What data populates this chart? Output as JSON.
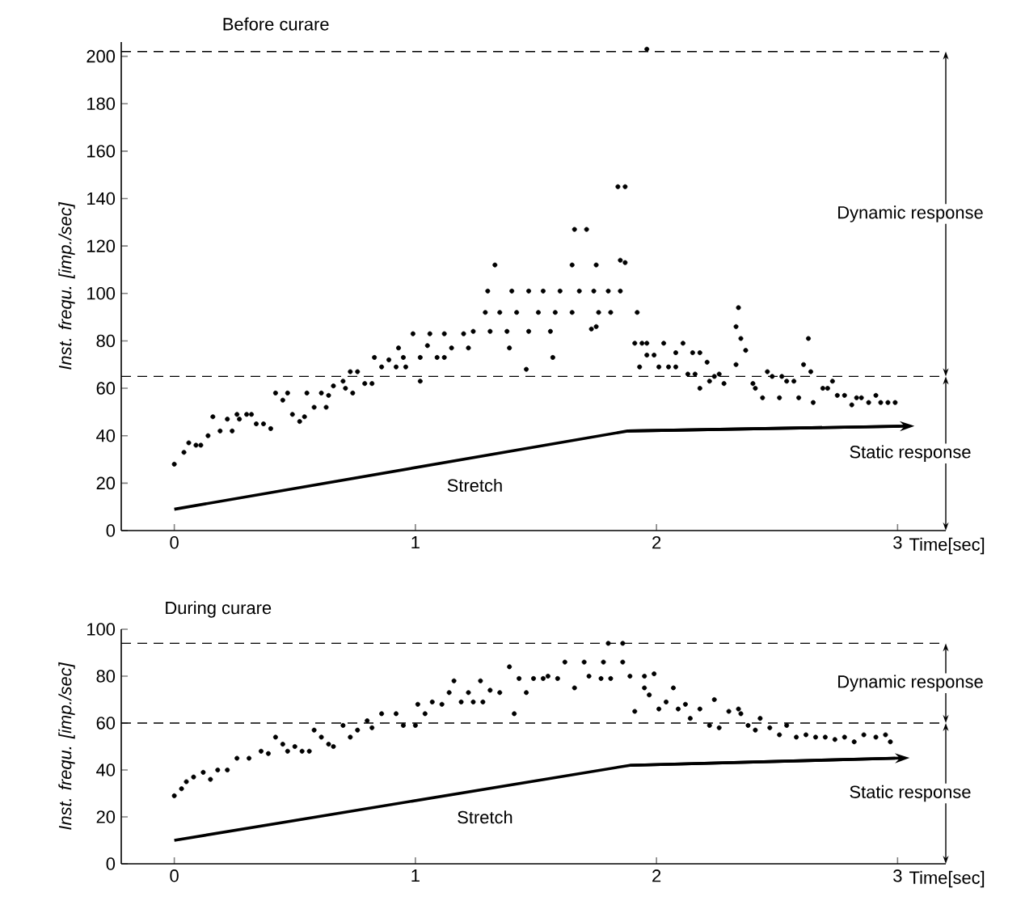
{
  "chart_data": [
    {
      "type": "scatter",
      "title": "Before curare",
      "xlabel": "Time[sec]",
      "ylabel": "Inst. frequ. [imp./sec]",
      "xlim": [
        -0.22,
        3.2
      ],
      "ylim": [
        0,
        206
      ],
      "xticks": [
        0,
        1,
        2,
        3
      ],
      "yticks": [
        0,
        20,
        40,
        60,
        80,
        100,
        120,
        140,
        160,
        180,
        200
      ],
      "marker": "circle",
      "series": [
        {
          "color": "#000000",
          "x": [
            0.0,
            0.04,
            0.06,
            0.09,
            0.11,
            0.14,
            0.16,
            0.19,
            0.22,
            0.24,
            0.26,
            0.27,
            0.3,
            0.32,
            0.34,
            0.37,
            0.4,
            0.42,
            0.45,
            0.47,
            0.49,
            0.52,
            0.54,
            0.55,
            0.58,
            0.61,
            0.63,
            0.64,
            0.66,
            0.7,
            0.71,
            0.74,
            0.73,
            0.76,
            0.79,
            0.82,
            0.83,
            0.86,
            0.89,
            0.92,
            0.93,
            0.95,
            0.96,
            0.99,
            1.02,
            1.02,
            1.05,
            1.06,
            1.09,
            1.12,
            1.12,
            1.15,
            1.2,
            1.22,
            1.24,
            1.29,
            1.3,
            1.33,
            1.31,
            1.35,
            1.38,
            1.39,
            1.4,
            1.42,
            1.46,
            1.47,
            1.47,
            1.51,
            1.53,
            1.56,
            1.57,
            1.58,
            1.6,
            1.65,
            1.66,
            1.65,
            1.68,
            1.71,
            1.75,
            1.74,
            1.8,
            1.85,
            1.76,
            1.81,
            1.73,
            1.75,
            1.84,
            1.87,
            1.85,
            1.87,
            1.92,
            1.96,
            1.91,
            1.94,
            1.96,
            1.99,
            2.03,
            1.93,
            1.96,
            2.01,
            2.05,
            2.08,
            2.08,
            2.11,
            2.13,
            2.15,
            2.18,
            2.16,
            2.21,
            2.18,
            2.22,
            2.24,
            2.26,
            2.28,
            2.33,
            2.34,
            2.33,
            2.35,
            2.37,
            2.4,
            2.41,
            2.44,
            2.46,
            2.48,
            2.51,
            2.52,
            2.54,
            2.57,
            2.59,
            2.61,
            2.63,
            2.64,
            2.65,
            2.69,
            2.71,
            2.73,
            2.75,
            2.78,
            2.81,
            2.83,
            2.85,
            2.88,
            2.91,
            2.93,
            2.96,
            2.99
          ],
          "values": [
            28,
            33,
            37,
            36,
            36,
            40,
            48,
            42,
            47,
            42,
            49,
            47,
            49,
            49,
            45,
            45,
            43,
            58,
            55,
            58,
            49,
            46,
            48,
            58,
            52,
            58,
            52,
            57,
            61,
            63,
            60,
            58,
            67,
            67,
            62,
            62,
            73,
            69,
            72,
            69,
            77,
            73,
            69,
            83,
            63,
            73,
            78,
            83,
            73,
            83,
            73,
            77,
            83,
            77,
            84,
            92,
            101,
            112,
            84,
            92,
            84,
            77,
            101,
            92,
            68,
            101,
            84,
            92,
            101,
            84,
            73,
            92,
            101,
            112,
            127,
            92,
            101,
            127,
            112,
            101,
            101,
            101,
            92,
            92,
            85,
            86,
            145,
            145,
            114,
            113,
            92,
            203,
            79,
            79,
            79,
            74,
            79,
            69,
            74,
            69,
            69,
            69,
            75,
            79,
            66,
            75,
            75,
            66,
            71,
            60,
            63,
            65,
            66,
            62,
            70,
            94,
            86,
            81,
            76,
            62,
            60,
            56,
            67,
            65,
            56,
            65,
            63,
            63,
            56,
            70,
            81,
            67,
            54,
            60,
            60,
            63,
            57,
            57,
            53,
            56,
            56,
            54,
            57,
            54,
            54,
            54
          ]
        },
        {
          "type": "line",
          "name": "Stretch",
          "color": "#000000",
          "marker": "none",
          "x": [
            0,
            1.88,
            3.01
          ],
          "values": [
            9,
            42,
            44
          ]
        }
      ],
      "ref_lines": [
        {
          "axis": "y",
          "value": 202,
          "line_style": "dashed"
        },
        {
          "axis": "y",
          "value": 65,
          "line_style": "dashed"
        }
      ],
      "annotations": [
        "Dynamic response",
        "Static response"
      ]
    },
    {
      "type": "scatter",
      "title": "During curare",
      "xlabel": "Time[sec]",
      "ylabel": "Inst. frequ. [imp./sec]",
      "xlim": [
        -0.22,
        3.2
      ],
      "ylim": [
        0,
        100
      ],
      "xticks": [
        0,
        1,
        2,
        3
      ],
      "yticks": [
        0,
        20,
        40,
        60,
        80,
        100
      ],
      "marker": "circle",
      "series": [
        {
          "color": "#000000",
          "x": [
            0,
            0.03,
            0.05,
            0.08,
            0.12,
            0.15,
            0.18,
            0.22,
            0.26,
            0.31,
            0.36,
            0.39,
            0.42,
            0.45,
            0.47,
            0.5,
            0.53,
            0.56,
            0.58,
            0.61,
            0.64,
            0.66,
            0.7,
            0.73,
            0.76,
            0.8,
            0.82,
            0.86,
            0.92,
            0.95,
            1.0,
            1.01,
            1.04,
            1.07,
            1.11,
            1.14,
            1.16,
            1.19,
            1.22,
            1.24,
            1.27,
            1.28,
            1.31,
            1.35,
            1.39,
            1.41,
            1.43,
            1.46,
            1.49,
            1.53,
            1.55,
            1.59,
            1.62,
            1.7,
            1.78,
            1.86,
            1.66,
            1.72,
            1.77,
            1.81,
            1.8,
            1.86,
            1.89,
            1.91,
            1.95,
            1.99,
            1.95,
            1.97,
            2.01,
            2.04,
            2.07,
            2.09,
            2.12,
            2.14,
            2.18,
            2.22,
            2.24,
            2.26,
            2.3,
            2.34,
            2.35,
            2.38,
            2.41,
            2.43,
            2.47,
            2.51,
            2.54,
            2.58,
            2.62,
            2.66,
            2.7,
            2.74,
            2.78,
            2.82,
            2.86,
            2.91,
            2.95,
            2.97
          ],
          "values": [
            29,
            32,
            35,
            37,
            39,
            36,
            40,
            40,
            45,
            45,
            48,
            47,
            54,
            51,
            48,
            50,
            48,
            48,
            57,
            54,
            51,
            50,
            59,
            54,
            57,
            61,
            58,
            64,
            64,
            59,
            59,
            68,
            64,
            69,
            68,
            73,
            78,
            69,
            73,
            69,
            78,
            69,
            74,
            73,
            84,
            64,
            79,
            73,
            79,
            79,
            80,
            79,
            86,
            86,
            86,
            86,
            75,
            80,
            79,
            79,
            94,
            94,
            80,
            65,
            80,
            81,
            75,
            72,
            66,
            69,
            75,
            66,
            68,
            62,
            66,
            59,
            70,
            58,
            65,
            66,
            64,
            59,
            57,
            62,
            58,
            55,
            59,
            54,
            55,
            54,
            54,
            53,
            54,
            52,
            55,
            54,
            55,
            52
          ]
        },
        {
          "type": "line",
          "name": "Stretch",
          "color": "#000000",
          "marker": "none",
          "x": [
            0,
            1.89,
            2.99
          ],
          "values": [
            10,
            42,
            45
          ]
        }
      ],
      "ref_lines": [
        {
          "axis": "y",
          "value": 94,
          "line_style": "dashed"
        },
        {
          "axis": "y",
          "value": 60,
          "line_style": "dashed"
        }
      ],
      "annotations": [
        "Dynamic response",
        "Static response"
      ]
    }
  ]
}
